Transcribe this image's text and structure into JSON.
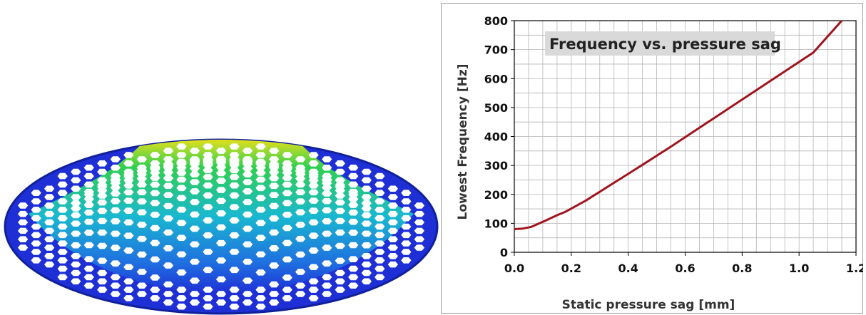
{
  "figure": {
    "left_panel": {
      "description_icon": "honeycomb-dome-fea-mesh",
      "colormap": [
        "#1f2fd6",
        "#19b8d0",
        "#2fd050",
        "#e8e01a",
        "#f08a10",
        "#e01010"
      ]
    }
  },
  "chart_data": {
    "type": "line",
    "title": "Frequency vs. pressure sag",
    "xlabel": "Static pressure sag [mm]",
    "ylabel": "Lowest Frequency [Hz]",
    "xlim": [
      0.0,
      1.2
    ],
    "ylim": [
      0,
      800
    ],
    "xticks": [
      "0.0",
      "0.2",
      "0.4",
      "0.6",
      "0.8",
      "1.0",
      "1.2"
    ],
    "yticks": [
      "0",
      "100",
      "200",
      "300",
      "400",
      "500",
      "600",
      "700",
      "800"
    ],
    "grid": true,
    "series": [
      {
        "color": "#a0141e",
        "x": [
          0.0,
          0.03,
          0.06,
          0.1,
          0.15,
          0.18,
          0.25,
          0.35,
          0.45,
          0.55,
          0.65,
          0.75,
          0.85,
          0.95,
          1.05,
          1.15
        ],
        "y": [
          80,
          82,
          88,
          105,
          128,
          140,
          178,
          240,
          302,
          365,
          430,
          495,
          560,
          625,
          690,
          800
        ]
      }
    ]
  }
}
